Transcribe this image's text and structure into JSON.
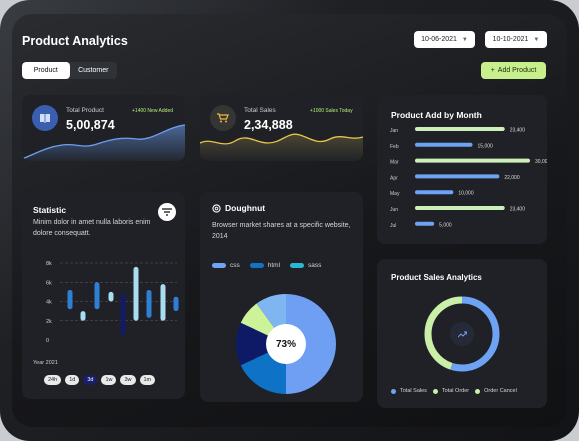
{
  "header": {
    "title": "Product Analytics",
    "date_from": "10-06-2021",
    "date_to": "10-10-2021",
    "tabs": [
      "Product",
      "Customer"
    ],
    "active_tab": "Product",
    "add_button": "Add Product",
    "add_icon": "+"
  },
  "stats": {
    "total_product": {
      "label": "Total Product",
      "value": "5,00,874",
      "tag": "+1400 New Added",
      "icon": "book-icon",
      "wave_color": "#6e9ff3"
    },
    "total_sales": {
      "label": "Total Sales",
      "value": "2,34,888",
      "tag": "+1000 Sales Today",
      "icon": "cart-icon",
      "wave_color": "#e8c44a"
    }
  },
  "statistic": {
    "title": "Statistic",
    "desc": "Minim dolor in amet nulla laboris enim dolore consequatt.",
    "year_label": "Year 2021",
    "chips": [
      "24h",
      "1d",
      "3d",
      "1w",
      "3w",
      "1m"
    ],
    "active_chip": "3d",
    "chart_data": {
      "type": "bar",
      "y_ticks": [
        "8k",
        "6k",
        "4k",
        "2k",
        "0"
      ],
      "ylim": [
        0,
        8
      ],
      "ranges": [
        {
          "low": 3.2,
          "high": 5.2,
          "color": "#2f7fd4"
        },
        {
          "low": 2.0,
          "high": 3.0,
          "color": "#a9dcef"
        },
        {
          "low": 3.2,
          "high": 6.0,
          "color": "#2f7fd4"
        },
        {
          "low": 4.0,
          "high": 5.0,
          "color": "#a9dcef"
        },
        {
          "low": 0.5,
          "high": 4.8,
          "color": "#141a66"
        },
        {
          "low": 2.0,
          "high": 7.6,
          "color": "#a9dcef"
        },
        {
          "low": 2.3,
          "high": 5.2,
          "color": "#2f7fd4"
        },
        {
          "low": 2.0,
          "high": 5.8,
          "color": "#a9dcef"
        },
        {
          "low": 3.0,
          "high": 4.5,
          "color": "#2f7fd4"
        }
      ]
    }
  },
  "doughnut": {
    "title": "Doughnut",
    "desc": "Browser market shares at a specific website, 2014",
    "legend": [
      {
        "label": "css",
        "color": "#6fa4f2"
      },
      {
        "label": "html",
        "color": "#1373c2"
      },
      {
        "label": "sass",
        "color": "#28b8d0"
      }
    ],
    "center": "73%",
    "chart_data": {
      "type": "pie",
      "values": [
        50,
        18,
        14,
        8,
        10
      ],
      "colors": [
        "#6e9ff3",
        "#0e73c7",
        "#0f1a66",
        "#cdf39a",
        "#7fb6f2"
      ]
    }
  },
  "product_add": {
    "title": "Product Add  by Month",
    "chart_data": {
      "type": "bar",
      "categories": [
        "Jan",
        "Feb",
        "Mar",
        "Apr",
        "May",
        "Jun",
        "Jul"
      ],
      "values": [
        23400,
        15000,
        30000,
        22000,
        10000,
        23400,
        5000
      ],
      "labels": [
        "23,400",
        "15,000",
        "30,000",
        "22,000",
        "10,000",
        "23,400",
        "5,000"
      ],
      "colors": [
        "#cdefb9",
        "#6ea3f3",
        "#cdefb9",
        "#6ea3f3",
        "#6ea3f3",
        "#cdefb9",
        "#6ea3f3"
      ],
      "xlim": [
        0,
        30000
      ]
    }
  },
  "sales_analytics": {
    "title": "Product Sales Analytics",
    "legend": [
      {
        "label": "Total Sales",
        "color": "#6ea3f3"
      },
      {
        "label": "Total Order",
        "color": "#c9efa9"
      },
      {
        "label": "Order Cancel",
        "color": "#c9efa9"
      }
    ],
    "chart_data": {
      "type": "pie",
      "values": [
        55,
        45
      ],
      "colors": [
        "#6ea3f3",
        "#c9efa9"
      ]
    }
  }
}
